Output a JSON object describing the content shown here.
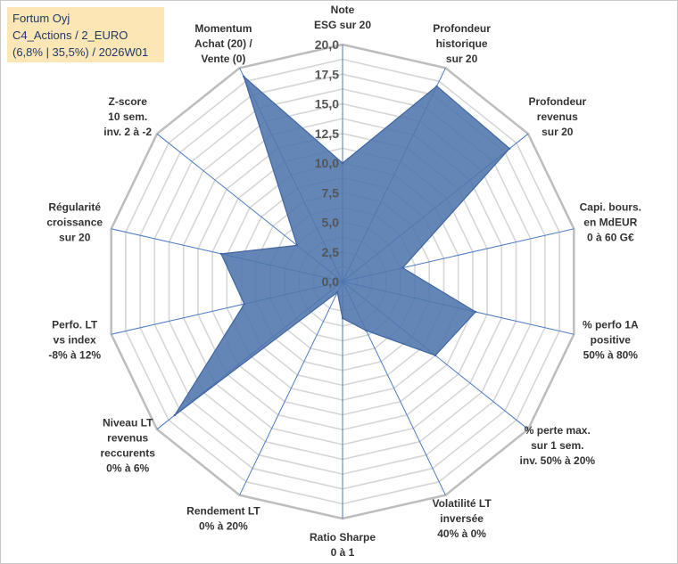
{
  "title_lines": [
    "Fortum Oyj",
    "C4_Actions / 2_EURO",
    "(6,8% | 35,5%) / 2026W01"
  ],
  "chart_data": {
    "type": "radar",
    "axes": [
      {
        "name": "Note ESG sur 20",
        "lines": [
          "Note",
          "ESG sur 20"
        ]
      },
      {
        "name": "Profondeur historique sur 20",
        "lines": [
          "Profondeur",
          "historique",
          "sur 20"
        ]
      },
      {
        "name": "Profondeur revenus sur 20",
        "lines": [
          "Profondeur",
          "revenus",
          "sur 20"
        ]
      },
      {
        "name": "Capi. bours. en MdEUR 0 à 60 G€",
        "lines": [
          "Capi. bours.",
          "en MdEUR",
          "0 à 60 G€"
        ]
      },
      {
        "name": "% perfo 1A positive 50% à 80%",
        "lines": [
          "% perfo 1A",
          "positive",
          "50% à 80%"
        ]
      },
      {
        "name": "% perte max. sur 1 sem. inv. 50% à 20%",
        "lines": [
          "% perte max.",
          "sur 1 sem.",
          "inv. 50% à 20%"
        ]
      },
      {
        "name": "Volatilité LT inversée 40% à 0%",
        "lines": [
          "Volatilité LT",
          "inversée",
          "40% à 0%"
        ]
      },
      {
        "name": "Ratio Sharpe 0 à 1",
        "lines": [
          "Ratio Sharpe",
          "0 à 1"
        ]
      },
      {
        "name": "Rendement LT 0% à 20%",
        "lines": [
          "Rendement LT",
          "0% à 20%"
        ]
      },
      {
        "name": "Niveau LT revenus reccurents 0% à 6%",
        "lines": [
          "Niveau LT",
          "revenus",
          "reccurents",
          "0% à 6%"
        ]
      },
      {
        "name": "Perfo. LT vs index -8% à 12%",
        "lines": [
          "Perfo. LT",
          "vs index",
          "-8% à 12%"
        ]
      },
      {
        "name": "Régularité croissance sur 20",
        "lines": [
          "Régularité",
          "croissance",
          "sur 20"
        ]
      },
      {
        "name": "Z-score 10 sem. inv. 2 à -2",
        "lines": [
          "Z-score",
          "10 sem.",
          "inv. 2 à -2"
        ]
      },
      {
        "name": "Momentum Achat (20) / Vente (0)",
        "lines": [
          "Momentum",
          "Achat (20) /",
          "Vente (0)"
        ]
      }
    ],
    "series": [
      {
        "name": "Fortum Oyj",
        "values": [
          10.0,
          18.3,
          18.0,
          5.2,
          11.5,
          10.0,
          4.6,
          3.1,
          1.0,
          18.1,
          8.5,
          10.5,
          4.9,
          19.2
        ]
      }
    ],
    "rmin": 0,
    "rmax": 20,
    "ticks": [
      "0,0",
      "2,5",
      "5,0",
      "7,5",
      "10,0",
      "12,5",
      "15,0",
      "17,5",
      "20,0"
    ],
    "tick_values": [
      0,
      2.5,
      5,
      7.5,
      10,
      12.5,
      15,
      17.5,
      20
    ],
    "fill_color": "#4f75ad",
    "line_color": "#3f65a3",
    "grid_color": "#d6d6d6",
    "spoke_color": "#4a7cc4"
  }
}
